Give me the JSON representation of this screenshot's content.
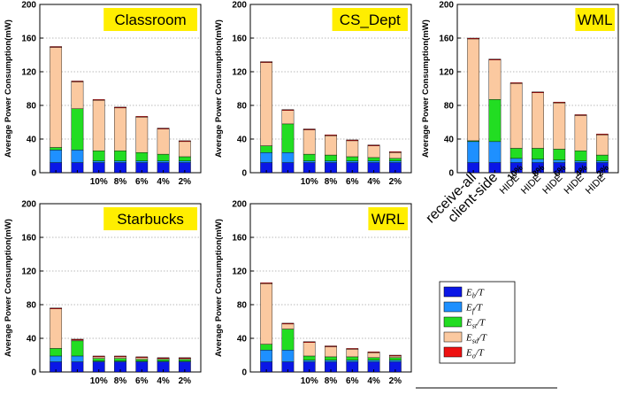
{
  "ylabel": "Average Power Consumption(mW)",
  "yticks": [
    0,
    40,
    80,
    120,
    160,
    200
  ],
  "ylim": [
    0,
    200
  ],
  "categories": [
    "receive-all",
    "client-side",
    "HIDE 10%",
    "HIDE 8%",
    "HIDE 6%",
    "HIDE 4%",
    "HIDE 2%"
  ],
  "short_tick_labels": [
    "",
    "",
    "10%",
    "8%",
    "6%",
    "4%",
    "2%"
  ],
  "rotated_tick_labels": [
    "receive-all",
    "client-side",
    "HIDE",
    "HIDE",
    "HIDE",
    "HIDE",
    "HIDE"
  ],
  "rotated_tick_suffix": [
    "",
    "",
    "10%",
    "8%",
    "6%",
    "4%",
    "2%"
  ],
  "colors": {
    "Eb": "#0a17e6",
    "Ef": "#1e90ff",
    "Est": "#22dd22",
    "Esd": "#fbc9a0",
    "Eo": "#ee1111",
    "title_box": "#ffee00"
  },
  "legend": {
    "entries": [
      {
        "key": "Eb",
        "main": "E",
        "sub": "b",
        "rest": "/T"
      },
      {
        "key": "Ef",
        "main": "E",
        "sub": "f",
        "rest": "/T"
      },
      {
        "key": "Est",
        "main": "E",
        "sub": "st",
        "rest": "/T"
      },
      {
        "key": "Esd",
        "main": "E",
        "sub": "sd",
        "rest": "/T"
      },
      {
        "key": "Eo",
        "main": "E",
        "sub": "o",
        "rest": "/T"
      }
    ]
  },
  "chart_data": [
    {
      "type": "bar",
      "stacked": true,
      "title": "Classroom",
      "categories": [
        "receive-all",
        "client-side",
        "HIDE 10%",
        "HIDE 8%",
        "HIDE 6%",
        "HIDE 4%",
        "HIDE 2%"
      ],
      "series": [
        {
          "name": "Eb/T",
          "values": [
            12,
            12,
            12,
            12,
            12,
            12,
            12
          ]
        },
        {
          "name": "Ef/T",
          "values": [
            15,
            15,
            2,
            2,
            2,
            2,
            2
          ]
        },
        {
          "name": "Est/T",
          "values": [
            3,
            49,
            12,
            12,
            10,
            8,
            5
          ]
        },
        {
          "name": "Esd/T",
          "values": [
            119,
            32,
            60,
            51,
            42,
            30,
            18
          ]
        },
        {
          "name": "Eo/T",
          "values": [
            1,
            1,
            1,
            1,
            1,
            1,
            1
          ]
        }
      ],
      "ylabel": "Average Power Consumption(mW)",
      "ylim": [
        0,
        200
      ],
      "grid": "horizontal"
    },
    {
      "type": "bar",
      "stacked": true,
      "title": "CS_Dept",
      "categories": [
        "receive-all",
        "client-side",
        "HIDE 10%",
        "HIDE 8%",
        "HIDE 6%",
        "HIDE 4%",
        "HIDE 2%"
      ],
      "series": [
        {
          "name": "Eb/T",
          "values": [
            12,
            12,
            12,
            12,
            12,
            12,
            12
          ]
        },
        {
          "name": "Ef/T",
          "values": [
            12,
            12,
            2,
            2,
            2,
            2,
            2
          ]
        },
        {
          "name": "Est/T",
          "values": [
            8,
            34,
            8,
            7,
            5,
            4,
            3
          ]
        },
        {
          "name": "Esd/T",
          "values": [
            99,
            16,
            29,
            23,
            19,
            14,
            7
          ]
        },
        {
          "name": "Eo/T",
          "values": [
            1,
            1,
            1,
            1,
            1,
            1,
            1
          ]
        }
      ],
      "ylabel": "Average Power Consumption(mW)",
      "ylim": [
        0,
        200
      ],
      "grid": "horizontal"
    },
    {
      "type": "bar",
      "stacked": true,
      "title": "WML",
      "categories": [
        "receive-all",
        "client-side",
        "HIDE 10%",
        "HIDE 8%",
        "HIDE 6%",
        "HIDE 4%",
        "HIDE 2%"
      ],
      "series": [
        {
          "name": "Eb/T",
          "values": [
            12,
            12,
            12,
            12,
            12,
            12,
            12
          ]
        },
        {
          "name": "Ef/T",
          "values": [
            25,
            25,
            5,
            4,
            3,
            2,
            2
          ]
        },
        {
          "name": "Est/T",
          "values": [
            1,
            50,
            12,
            13,
            13,
            12,
            7
          ]
        },
        {
          "name": "Esd/T",
          "values": [
            121,
            47,
            77,
            66,
            55,
            42,
            24
          ]
        },
        {
          "name": "Eo/T",
          "values": [
            1,
            1,
            1,
            1,
            1,
            1,
            1
          ]
        }
      ],
      "ylabel": "Average Power Consumption(mW)",
      "ylim": [
        0,
        200
      ],
      "grid": "horizontal"
    },
    {
      "type": "bar",
      "stacked": true,
      "title": "Starbucks",
      "categories": [
        "receive-all",
        "client-side",
        "HIDE 10%",
        "HIDE 8%",
        "HIDE 6%",
        "HIDE 4%",
        "HIDE 2%"
      ],
      "series": [
        {
          "name": "Eb/T",
          "values": [
            12,
            12,
            12,
            12,
            12,
            12,
            12
          ]
        },
        {
          "name": "Ef/T",
          "values": [
            7,
            7,
            1,
            1,
            1,
            1,
            1
          ]
        },
        {
          "name": "Est/T",
          "values": [
            9,
            18,
            3,
            3,
            2,
            2,
            2
          ]
        },
        {
          "name": "Esd/T",
          "values": [
            47,
            1,
            2,
            2,
            2,
            1,
            1
          ]
        },
        {
          "name": "Eo/T",
          "values": [
            1,
            1,
            1,
            1,
            1,
            1,
            1
          ]
        }
      ],
      "ylabel": "Average Power Consumption(mW)",
      "ylim": [
        0,
        200
      ],
      "grid": "horizontal"
    },
    {
      "type": "bar",
      "stacked": true,
      "title": "WRL",
      "categories": [
        "receive-all",
        "client-side",
        "HIDE 10%",
        "HIDE 8%",
        "HIDE 6%",
        "HIDE 4%",
        "HIDE 2%"
      ],
      "series": [
        {
          "name": "Eb/T",
          "values": [
            12,
            12,
            12,
            12,
            12,
            12,
            12
          ]
        },
        {
          "name": "Ef/T",
          "values": [
            14,
            14,
            2,
            2,
            2,
            2,
            2
          ]
        },
        {
          "name": "Est/T",
          "values": [
            7,
            25,
            5,
            4,
            4,
            3,
            3
          ]
        },
        {
          "name": "Esd/T",
          "values": [
            72,
            6,
            16,
            12,
            9,
            6,
            2
          ]
        },
        {
          "name": "Eo/T",
          "values": [
            1,
            1,
            1,
            1,
            1,
            1,
            1
          ]
        }
      ],
      "ylabel": "Average Power Consumption(mW)",
      "ylim": [
        0,
        200
      ],
      "grid": "horizontal"
    }
  ]
}
